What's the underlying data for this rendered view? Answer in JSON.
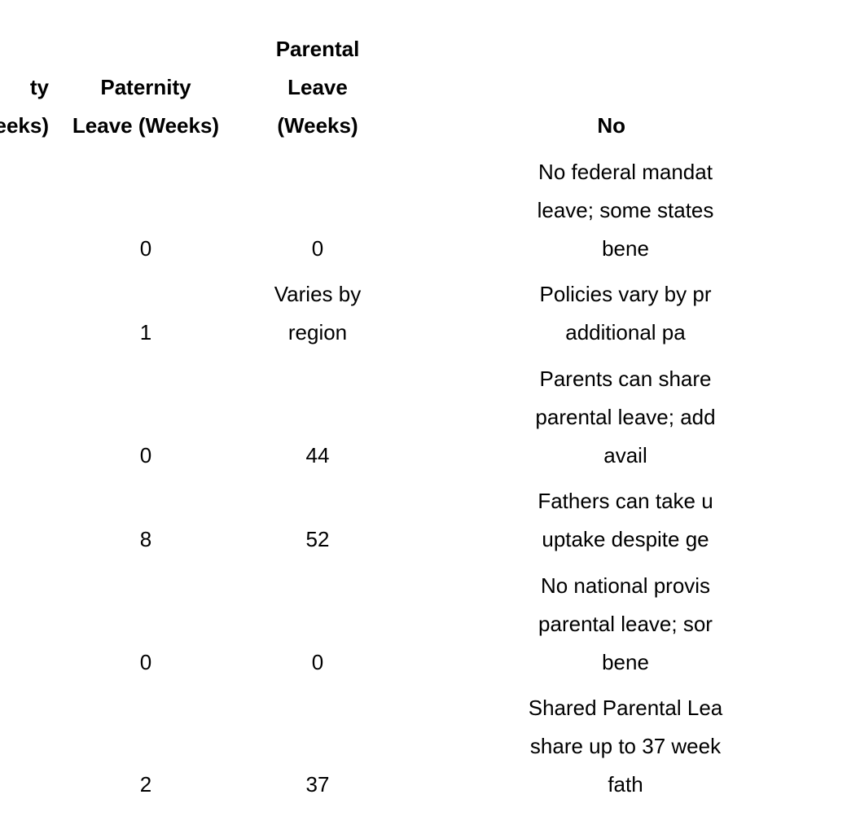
{
  "table": {
    "headers": {
      "maternity": [
        "ty",
        "eeks)"
      ],
      "paternity": [
        "Paternity",
        "Leave (Weeks)"
      ],
      "parental": [
        "Parental",
        "Leave",
        "(Weeks)"
      ],
      "notes": [
        "No"
      ]
    },
    "rows": [
      {
        "paternity": "0",
        "parental": [
          "0"
        ],
        "notes": [
          "No federal mandat",
          "leave; some states",
          "bene"
        ]
      },
      {
        "paternity": "1",
        "parental": [
          "Varies by",
          "region"
        ],
        "notes": [
          "Policies vary by pr",
          "additional pa"
        ]
      },
      {
        "paternity": "0",
        "parental": [
          "44"
        ],
        "notes": [
          "Parents can share",
          "parental leave; add",
          "avail"
        ]
      },
      {
        "paternity": "8",
        "parental": [
          "52"
        ],
        "notes": [
          "Fathers can take u",
          "uptake despite ge"
        ]
      },
      {
        "paternity": "0",
        "parental": [
          "0"
        ],
        "notes": [
          "No national provis",
          "parental leave; sor",
          "bene"
        ]
      },
      {
        "paternity": "2",
        "parental": [
          "37"
        ],
        "notes": [
          "Shared Parental Lea",
          "share up to 37 week",
          "fath"
        ]
      }
    ]
  }
}
